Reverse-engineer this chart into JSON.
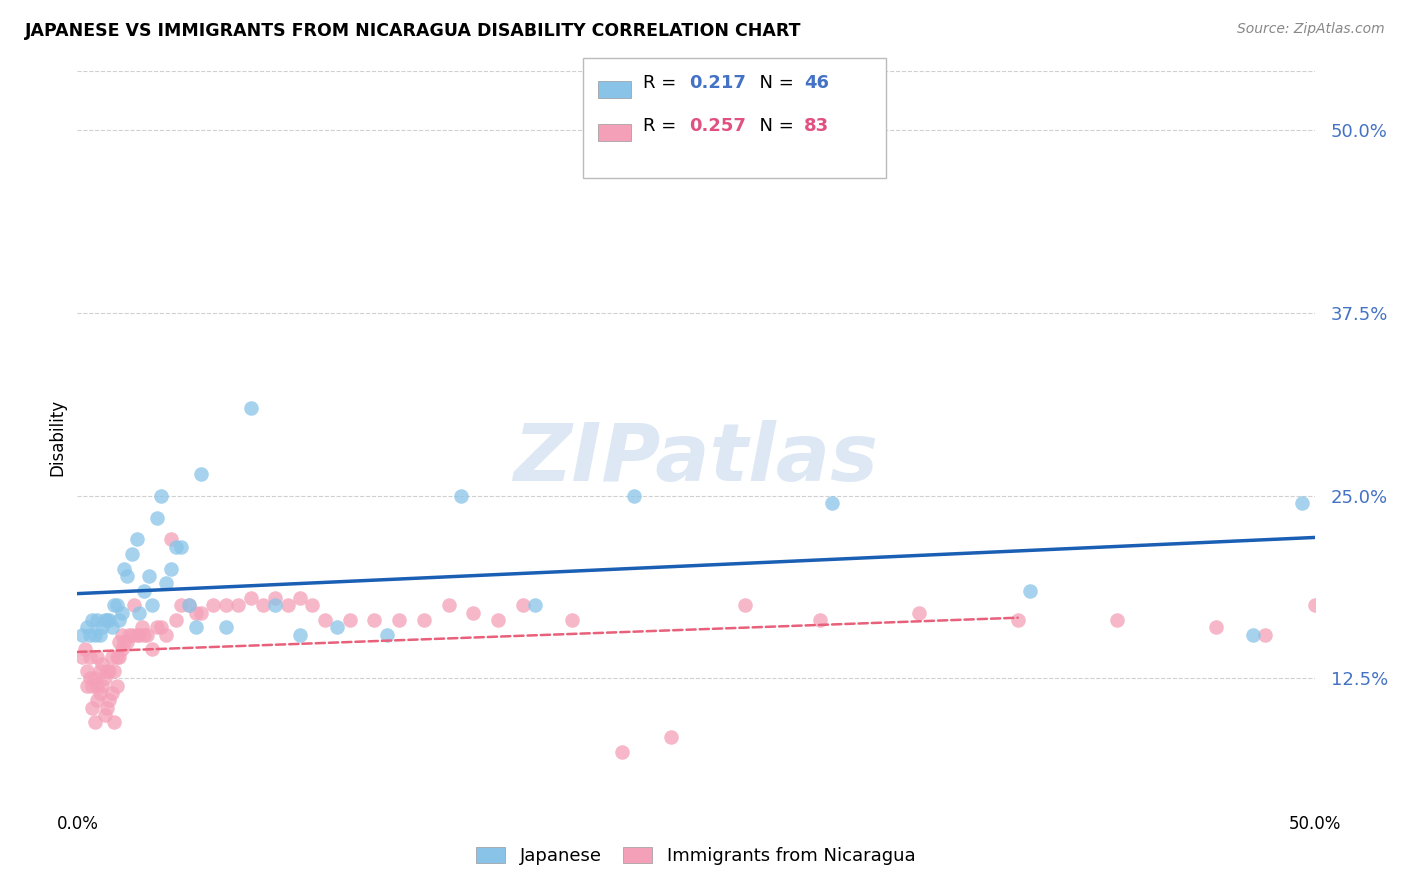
{
  "title": "JAPANESE VS IMMIGRANTS FROM NICARAGUA DISABILITY CORRELATION CHART",
  "source": "Source: ZipAtlas.com",
  "ylabel": "Disability",
  "xlim": [
    0.0,
    0.5
  ],
  "ylim": [
    0.04,
    0.54
  ],
  "yticks": [
    0.125,
    0.25,
    0.375,
    0.5
  ],
  "ytick_labels": [
    "12.5%",
    "25.0%",
    "37.5%",
    "50.0%"
  ],
  "grid_color": "#d0d0d0",
  "background_color": "#ffffff",
  "legend_R1": "0.217",
  "legend_N1": "46",
  "legend_R2": "0.257",
  "legend_N2": "83",
  "blue_color": "#89c4e8",
  "pink_color": "#f4a0b8",
  "line_blue": "#1a5fb4",
  "line_pink": "#e8607a",
  "japanese_x": [
    0.002,
    0.004,
    0.005,
    0.006,
    0.007,
    0.008,
    0.009,
    0.01,
    0.011,
    0.012,
    0.013,
    0.014,
    0.015,
    0.016,
    0.017,
    0.018,
    0.019,
    0.02,
    0.022,
    0.024,
    0.025,
    0.027,
    0.029,
    0.03,
    0.032,
    0.034,
    0.036,
    0.038,
    0.04,
    0.042,
    0.045,
    0.048,
    0.05,
    0.06,
    0.07,
    0.08,
    0.09,
    0.105,
    0.125,
    0.155,
    0.185,
    0.225,
    0.305,
    0.385,
    0.475,
    0.495
  ],
  "japanese_y": [
    0.155,
    0.16,
    0.155,
    0.165,
    0.155,
    0.165,
    0.155,
    0.16,
    0.165,
    0.165,
    0.165,
    0.16,
    0.175,
    0.175,
    0.165,
    0.17,
    0.2,
    0.195,
    0.21,
    0.22,
    0.17,
    0.185,
    0.195,
    0.175,
    0.235,
    0.25,
    0.19,
    0.2,
    0.215,
    0.215,
    0.175,
    0.16,
    0.265,
    0.16,
    0.31,
    0.175,
    0.155,
    0.16,
    0.155,
    0.25,
    0.175,
    0.25,
    0.245,
    0.185,
    0.155,
    0.245
  ],
  "nicaragua_x": [
    0.002,
    0.003,
    0.004,
    0.004,
    0.005,
    0.005,
    0.006,
    0.006,
    0.007,
    0.007,
    0.008,
    0.008,
    0.008,
    0.009,
    0.009,
    0.01,
    0.01,
    0.011,
    0.011,
    0.012,
    0.012,
    0.013,
    0.013,
    0.014,
    0.014,
    0.015,
    0.015,
    0.016,
    0.016,
    0.017,
    0.017,
    0.018,
    0.018,
    0.019,
    0.02,
    0.021,
    0.022,
    0.023,
    0.024,
    0.025,
    0.026,
    0.027,
    0.028,
    0.03,
    0.032,
    0.034,
    0.036,
    0.038,
    0.04,
    0.042,
    0.045,
    0.048,
    0.05,
    0.055,
    0.06,
    0.065,
    0.07,
    0.075,
    0.08,
    0.085,
    0.09,
    0.095,
    0.1,
    0.11,
    0.12,
    0.13,
    0.14,
    0.15,
    0.16,
    0.17,
    0.18,
    0.2,
    0.22,
    0.24,
    0.27,
    0.3,
    0.34,
    0.38,
    0.42,
    0.46,
    0.48,
    0.5,
    0.51
  ],
  "nicaragua_y": [
    0.14,
    0.145,
    0.13,
    0.12,
    0.14,
    0.125,
    0.105,
    0.12,
    0.095,
    0.125,
    0.14,
    0.12,
    0.11,
    0.13,
    0.115,
    0.135,
    0.12,
    0.125,
    0.1,
    0.13,
    0.105,
    0.13,
    0.11,
    0.14,
    0.115,
    0.13,
    0.095,
    0.12,
    0.14,
    0.14,
    0.15,
    0.155,
    0.145,
    0.15,
    0.15,
    0.155,
    0.155,
    0.175,
    0.155,
    0.155,
    0.16,
    0.155,
    0.155,
    0.145,
    0.16,
    0.16,
    0.155,
    0.22,
    0.165,
    0.175,
    0.175,
    0.17,
    0.17,
    0.175,
    0.175,
    0.175,
    0.18,
    0.175,
    0.18,
    0.175,
    0.18,
    0.175,
    0.165,
    0.165,
    0.165,
    0.165,
    0.165,
    0.175,
    0.17,
    0.165,
    0.175,
    0.165,
    0.075,
    0.085,
    0.175,
    0.165,
    0.17,
    0.165,
    0.165,
    0.16,
    0.155,
    0.175,
    0.165
  ]
}
